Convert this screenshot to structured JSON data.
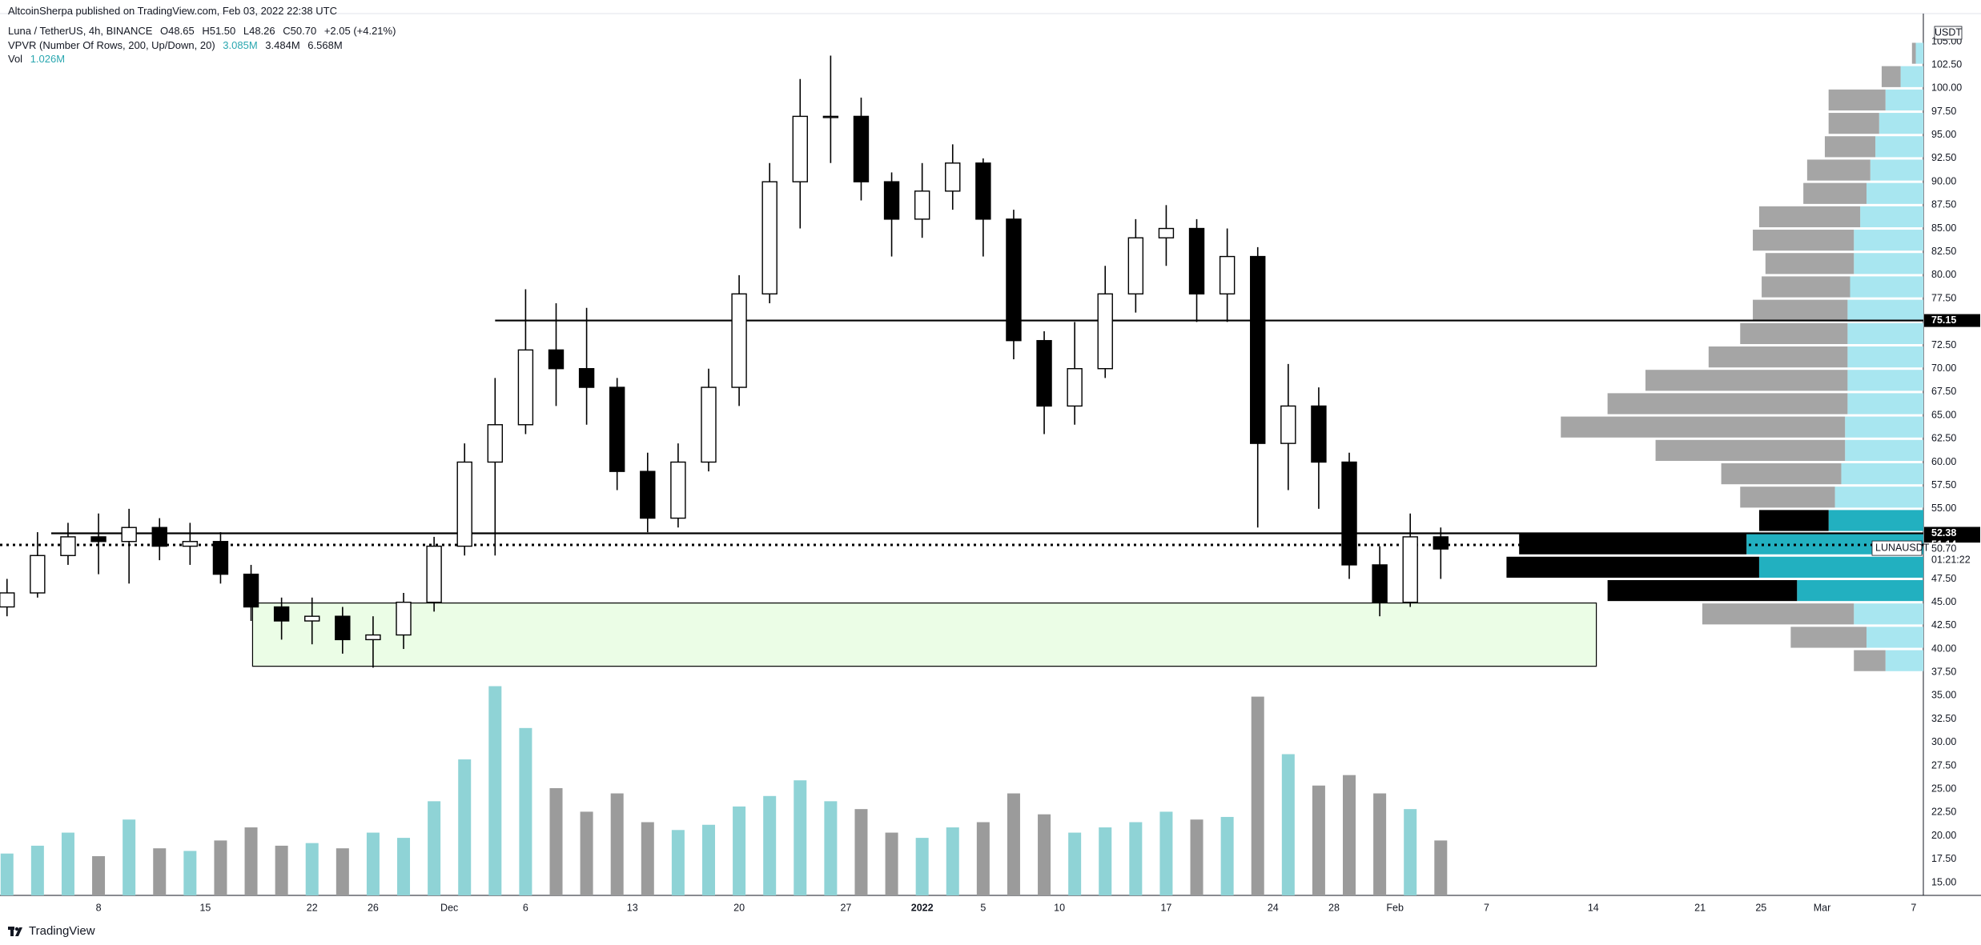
{
  "header": {
    "published": "AltcoinSherpa published on TradingView.com, Feb 03, 2022 22:38 UTC",
    "symbol": "Luna / TetherUS, 4h, BINANCE",
    "ohlc": [
      "O48.65",
      "H51.50",
      "L48.26",
      "C50.70",
      "+2.05 (+4.21%)"
    ],
    "vpvr": "VPVR (Number Of Rows, 200, Up/Down, 20)",
    "vpvr_values": [
      "3.085M",
      "3.484M",
      "6.568M"
    ],
    "vol": "Vol",
    "vol_value": "1.026M"
  },
  "footer": {
    "brand": "TradingView"
  },
  "chart_data": {
    "type": "candlestick",
    "currency": "USDT",
    "x": [
      1,
      3,
      5,
      7,
      9,
      11,
      13,
      15,
      17,
      19,
      21,
      23,
      25,
      27,
      29,
      31,
      33,
      35,
      37,
      39,
      41,
      43,
      45,
      47,
      49,
      51,
      53,
      55,
      57,
      59,
      61,
      63,
      65,
      67,
      69,
      71,
      73,
      75,
      77,
      79,
      81,
      83,
      85,
      87,
      89,
      91,
      93,
      95
    ],
    "open": [
      44.5,
      46,
      50,
      52,
      51.5,
      53,
      51,
      51.5,
      48,
      44.5,
      43,
      43.5,
      41,
      41.5,
      45,
      51,
      60,
      64,
      72,
      70,
      68,
      59,
      54,
      60,
      68,
      78,
      90,
      97,
      97,
      90,
      86,
      89,
      92,
      86,
      73,
      66,
      70,
      78,
      84,
      85,
      78,
      82,
      62,
      66,
      60,
      49,
      45,
      52
    ],
    "high": [
      47.5,
      52.5,
      53.5,
      54.5,
      55,
      54,
      53.5,
      52.5,
      49,
      45.5,
      45.5,
      44.5,
      43.5,
      46,
      52,
      62,
      69,
      78.5,
      77,
      76.5,
      69,
      61,
      62,
      70,
      80,
      92,
      101,
      103.5,
      99,
      91,
      92,
      94,
      92.5,
      87,
      74,
      75,
      81,
      86,
      87.5,
      86,
      85,
      83,
      70.5,
      68,
      61,
      51,
      54.5,
      53
    ],
    "low": [
      43.5,
      45.5,
      49,
      48,
      47,
      49.5,
      49,
      47,
      43,
      41,
      40.5,
      39.5,
      38,
      40,
      44,
      50,
      50,
      63,
      66,
      64,
      57,
      52.5,
      53,
      59,
      66,
      77,
      85,
      92,
      88,
      82,
      84,
      87,
      82,
      71,
      63,
      64,
      69,
      76,
      81,
      75,
      75,
      53,
      57,
      55,
      47.5,
      43.5,
      44.5,
      47.5
    ],
    "close": [
      46,
      50,
      52,
      51.5,
      53,
      51,
      51.5,
      48,
      44.5,
      43,
      43.5,
      41,
      41.5,
      45,
      51,
      60,
      64,
      72,
      70,
      68,
      59,
      54,
      60,
      68,
      78,
      90,
      97,
      97,
      90,
      86,
      89,
      92,
      86,
      73,
      66,
      70,
      78,
      84,
      85,
      78,
      82,
      62,
      66,
      60,
      49,
      45,
      52,
      50.7
    ],
    "up_color": "#ffffff",
    "down_color": "#000000",
    "volume": [
      1.6,
      1.9,
      2.4,
      1.5,
      2.9,
      1.8,
      1.7,
      2.1,
      2.6,
      1.9,
      2.0,
      1.8,
      2.4,
      2.2,
      3.6,
      5.2,
      8.0,
      6.4,
      4.1,
      3.2,
      3.9,
      2.8,
      2.5,
      2.7,
      3.4,
      3.8,
      4.4,
      3.6,
      3.3,
      2.4,
      2.2,
      2.6,
      2.8,
      3.9,
      3.1,
      2.4,
      2.6,
      2.8,
      3.2,
      2.9,
      3.0,
      7.6,
      5.4,
      4.2,
      4.6,
      3.9,
      3.3,
      2.1
    ],
    "volume_lim": [
      0,
      8.2
    ],
    "volume_colors": {
      "up": "#8fd3d6",
      "down": "#9b9b9b"
    },
    "xlim": [
      0.54,
      126.64
    ],
    "xticks": [
      {
        "value": 7,
        "label": "8"
      },
      {
        "value": 14,
        "label": "15"
      },
      {
        "value": 21,
        "label": "22"
      },
      {
        "value": 25,
        "label": "26"
      },
      {
        "value": 30,
        "label": "Dec"
      },
      {
        "value": 35,
        "label": "6"
      },
      {
        "value": 42,
        "label": "13"
      },
      {
        "value": 49,
        "label": "20"
      },
      {
        "value": 56,
        "label": "27"
      },
      {
        "value": 61,
        "label": "2022",
        "bold": true
      },
      {
        "value": 65,
        "label": "5"
      },
      {
        "value": 70,
        "label": "10"
      },
      {
        "value": 77,
        "label": "17"
      },
      {
        "value": 84,
        "label": "24"
      },
      {
        "value": 88,
        "label": "28"
      },
      {
        "value": 92,
        "label": "Feb"
      },
      {
        "value": 98,
        "label": "7"
      },
      {
        "value": 105,
        "label": "14"
      },
      {
        "value": 112,
        "label": "21"
      },
      {
        "value": 116,
        "label": "25"
      },
      {
        "value": 120,
        "label": "Mar"
      },
      {
        "value": 126,
        "label": "7"
      }
    ],
    "ylim": [
      13.63,
      107.31
    ],
    "yticks": [
      {
        "value": 15,
        "label": "15.00"
      },
      {
        "value": 17.5,
        "label": "17.50"
      },
      {
        "value": 20,
        "label": "20.00"
      },
      {
        "value": 22.5,
        "label": "22.50"
      },
      {
        "value": 25,
        "label": "25.00"
      },
      {
        "value": 27.5,
        "label": "27.50"
      },
      {
        "value": 30,
        "label": "30.00"
      },
      {
        "value": 32.5,
        "label": "32.50"
      },
      {
        "value": 35,
        "label": "35.00"
      },
      {
        "value": 37.5,
        "label": "37.50"
      },
      {
        "value": 40,
        "label": "40.00"
      },
      {
        "value": 42.5,
        "label": "42.50"
      },
      {
        "value": 45,
        "label": "45.00"
      },
      {
        "value": 47.5,
        "label": "47.50"
      },
      {
        "value": 50,
        "label": "50.00"
      },
      {
        "value": 52.5,
        "label": "52.50"
      },
      {
        "value": 55,
        "label": "55.00"
      },
      {
        "value": 57.5,
        "label": "57.50"
      },
      {
        "value": 60,
        "label": "60.00"
      },
      {
        "value": 62.5,
        "label": "62.50"
      },
      {
        "value": 65,
        "label": "65.00"
      },
      {
        "value": 67.5,
        "label": "67.50"
      },
      {
        "value": 70,
        "label": "70.00"
      },
      {
        "value": 72.5,
        "label": "72.50"
      },
      {
        "value": 75,
        "label": "75.00"
      },
      {
        "value": 77.5,
        "label": "77.50"
      },
      {
        "value": 80,
        "label": "80.00"
      },
      {
        "value": 82.5,
        "label": "82.50"
      },
      {
        "value": 85,
        "label": "85.00"
      },
      {
        "value": 87.5,
        "label": "87.50"
      },
      {
        "value": 90,
        "label": "90.00"
      },
      {
        "value": 92.5,
        "label": "92.50"
      },
      {
        "value": 95,
        "label": "95.00"
      },
      {
        "value": 97.5,
        "label": "97.50"
      },
      {
        "value": 100,
        "label": "100.00"
      },
      {
        "value": 102.5,
        "label": "102.50"
      },
      {
        "value": 105,
        "label": "105.00"
      }
    ],
    "hlines": [
      {
        "value": 75.15,
        "from": 33.0,
        "style": "solid"
      },
      {
        "value": 52.38,
        "from": 3.9,
        "style": "solid"
      },
      {
        "value": 51.14,
        "from": 0.54,
        "style": "dotted"
      }
    ],
    "last_price": {
      "value": 50.7,
      "label": "50.70"
    },
    "symbol": "LUNAUSDT",
    "countdown": "01:21:22",
    "zone": {
      "x": [
        17.1,
        105.2
      ],
      "y": [
        38.15,
        44.92
      ],
      "color": "#ebfde6"
    },
    "profile": {
      "bins": [
        37.5,
        40,
        42.5,
        45,
        47.5,
        50,
        52.5,
        55,
        57.5,
        60,
        62.5,
        65,
        67.5,
        70,
        72.5,
        75,
        77.5,
        80,
        82.5,
        85,
        87.5,
        90,
        92.5,
        95,
        97.5,
        100,
        102.5,
        105
      ],
      "up": [
        30,
        45,
        55,
        100,
        130,
        140,
        75,
        70,
        65,
        62,
        62,
        60,
        60,
        60,
        60,
        60,
        58,
        55,
        55,
        50,
        45,
        42,
        38,
        35,
        30,
        18,
        6
      ],
      "down": [
        25,
        60,
        120,
        150,
        200,
        180,
        55,
        75,
        95,
        150,
        225,
        190,
        160,
        110,
        85,
        75,
        70,
        70,
        80,
        80,
        50,
        50,
        40,
        40,
        45,
        15,
        3
      ],
      "xlim": [
        0,
        400
      ],
      "value_area": [
        45,
        55
      ],
      "colors": {
        "up": "#a8e6f0",
        "down": "#a5a5a5",
        "va_up": "#22b0c0",
        "va_down": "#000000"
      }
    }
  }
}
